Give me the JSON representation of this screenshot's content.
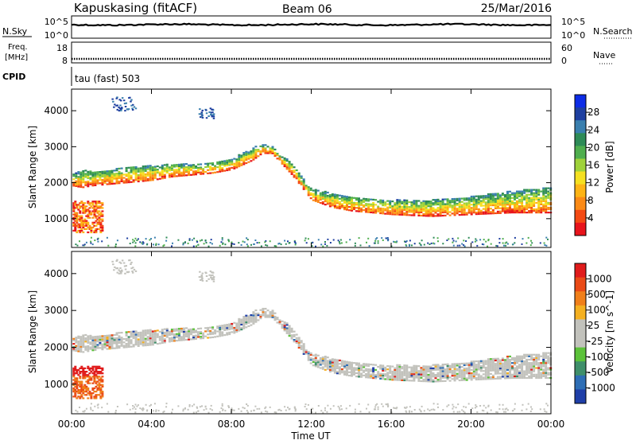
{
  "header": {
    "station": "Kapuskasing (fitACF)",
    "beam": "Beam 06",
    "date": "25/Mar/2016"
  },
  "top_panels": {
    "nsky_label": "N.Sky",
    "nsearch_label": "N.Search",
    "nsky_ticks": [
      "10^5",
      "10^0"
    ],
    "nsearch_ticks": [
      "10^5",
      "10^0"
    ],
    "freq_label_1": "Freq.",
    "freq_label_2": "[MHz]",
    "freq_ticks": [
      "18",
      "8"
    ],
    "nave_label": "Nave",
    "nave_ticks": [
      "60",
      "0"
    ],
    "cpid_label": "CPID",
    "cpid_text": "tau (fast) 503"
  },
  "power_colorbar": {
    "label": "Power [dB]",
    "ticks": [
      "28",
      "24",
      "20",
      "16",
      "12",
      "8",
      "4"
    ],
    "colors": [
      "#e8141c",
      "#f44a14",
      "#fb8a16",
      "#fdb415",
      "#f5e020",
      "#9fd23a",
      "#4fae4e",
      "#2e8b57",
      "#3a7fae",
      "#1e3fa0",
      "#0d2ce6"
    ]
  },
  "velocity_colorbar": {
    "label": "Velocity [m s^-1]",
    "ticks": [
      "1000",
      "500",
      "100",
      "25",
      "-25",
      "-100",
      "-500",
      "-1000"
    ],
    "colors": [
      "#1f3fa8",
      "#2e6eb5",
      "#3f8f6a",
      "#5cc23a",
      "#c2c2bc",
      "#c2c2bc",
      "#f4b021",
      "#f07f1a",
      "#ea4a16",
      "#e01b1b"
    ]
  },
  "chart_data": [
    {
      "type": "heatmap",
      "title": "Power",
      "ylabel": "Slant Range [km]",
      "ylim": [
        200,
        4600
      ],
      "xlim": [
        "00:00",
        "24:00"
      ],
      "yticks": [
        1000,
        2000,
        3000,
        4000
      ],
      "echo_bands": [
        {
          "t": [
            0,
            0.5,
            1,
            2,
            3,
            4,
            5,
            6,
            7,
            8,
            9,
            9.5,
            10,
            11,
            12,
            13,
            14,
            16,
            18,
            20,
            22,
            24
          ],
          "lower_km": [
            1900,
            1850,
            1900,
            1950,
            2000,
            2050,
            2150,
            2200,
            2250,
            2350,
            2600,
            2800,
            2800,
            2200,
            1500,
            1300,
            1200,
            1100,
            1050,
            1100,
            1150,
            1150
          ],
          "upper_km": [
            2200,
            2350,
            2300,
            2350,
            2450,
            2450,
            2500,
            2500,
            2550,
            2650,
            2950,
            3050,
            3000,
            2500,
            1800,
            1700,
            1600,
            1500,
            1500,
            1600,
            1750,
            1850
          ],
          "peak_power_db": 24
        }
      ],
      "power_range_db": [
        2,
        30
      ]
    },
    {
      "type": "heatmap",
      "title": "Velocity",
      "ylabel": "Slant Range [km]",
      "xlabel": "Time UT",
      "ylim": [
        200,
        4600
      ],
      "xlim": [
        "00:00",
        "24:00"
      ],
      "yticks": [
        1000,
        2000,
        3000,
        4000
      ],
      "dominant_velocity_bin": "-25 to 25",
      "velocity_range_m_s": [
        -1000,
        1000
      ]
    }
  ],
  "x_axis": {
    "ticks": [
      "00:00",
      "04:00",
      "08:00",
      "12:00",
      "16:00",
      "20:00",
      "00:00"
    ],
    "label": "Time UT"
  }
}
